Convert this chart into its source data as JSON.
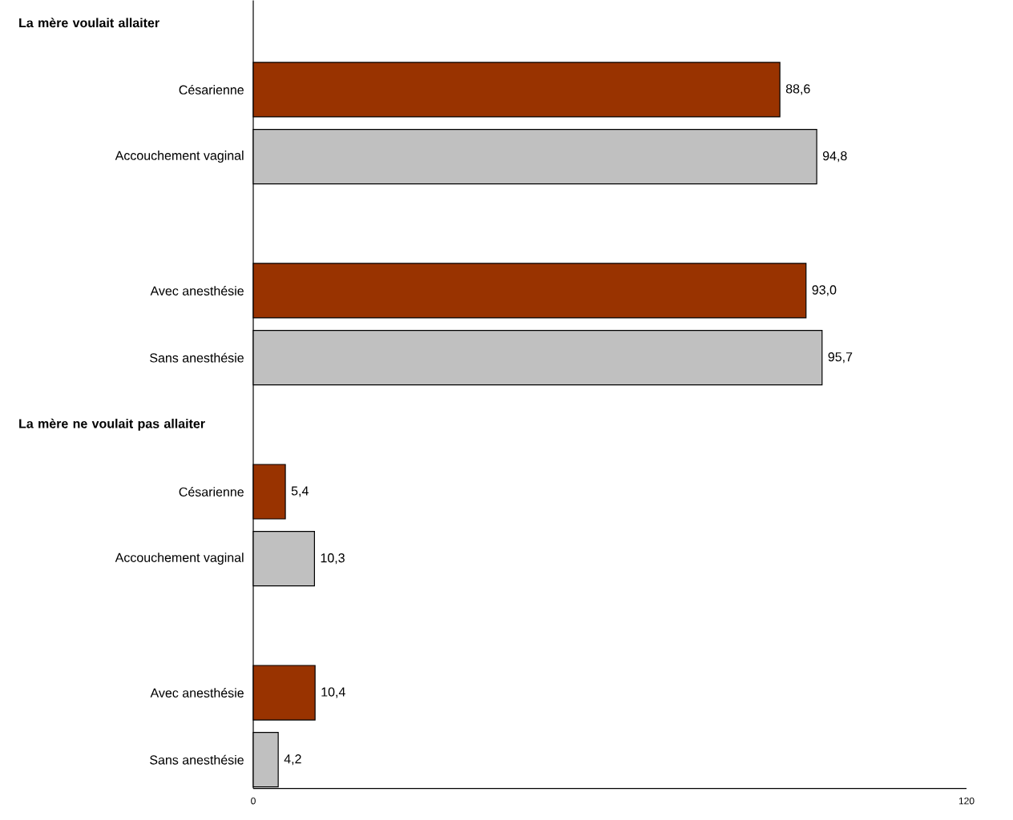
{
  "chart_data": {
    "type": "bar",
    "orientation": "horizontal",
    "categories": [
      null,
      "Césarienne",
      "Accouchement vaginal",
      null,
      "Avec anesthésie",
      "Sans anesthésie",
      null,
      "Césarienne",
      "Accouchement vaginal",
      null,
      "Avec anesthésie",
      "Sans anesthésie"
    ],
    "values": [
      null,
      88.6,
      94.8,
      null,
      93.0,
      95.7,
      null,
      5.4,
      10.3,
      null,
      10.4,
      4.2
    ],
    "value_labels": [
      null,
      "88,6",
      "94,8",
      null,
      "93,0",
      "95,7",
      null,
      "5,4",
      "10,3",
      null,
      "10,4",
      "4,2"
    ],
    "colors": [
      null,
      "#993300",
      "#c0c0c0",
      null,
      "#993300",
      "#c0c0c0",
      null,
      "#993300",
      "#c0c0c0",
      null,
      "#993300",
      "#c0c0c0"
    ],
    "xlim": [
      0,
      120
    ],
    "xticks": [
      0,
      120
    ],
    "annotations": [
      "La mère voulait allaiter",
      "La mère ne voulait pas allaiter"
    ]
  }
}
